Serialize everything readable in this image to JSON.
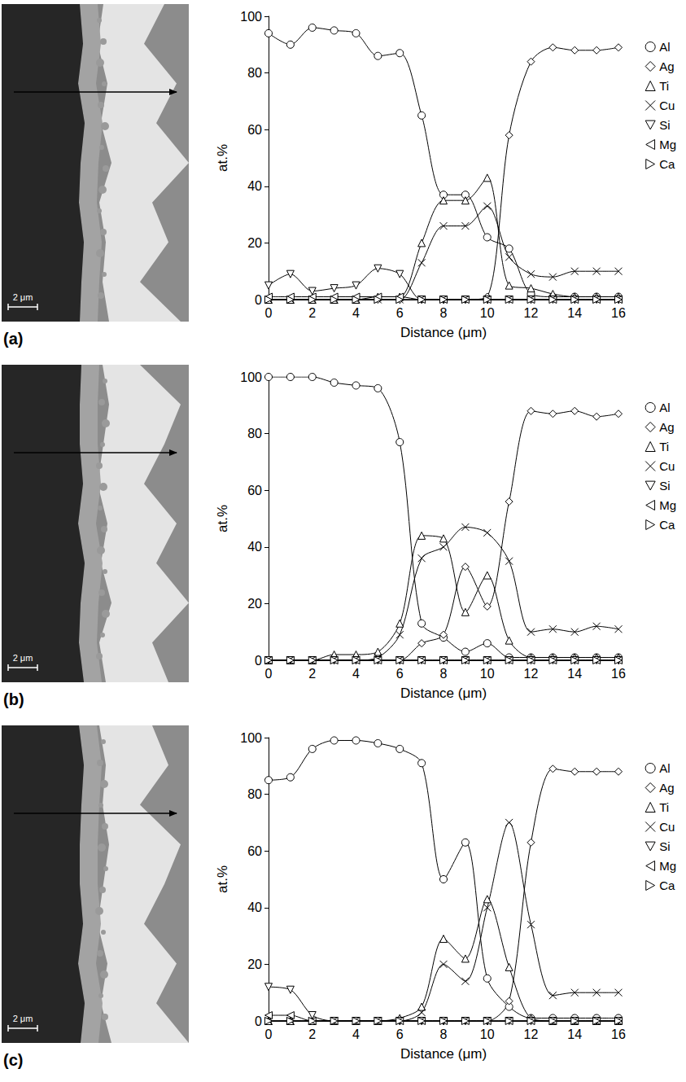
{
  "panels": [
    {
      "label": "(a)",
      "scale_bar": "2 μm"
    },
    {
      "label": "(b)",
      "scale_bar": "2 μm"
    },
    {
      "label": "(c)",
      "scale_bar": "2 μm"
    }
  ],
  "chart_data": [
    {
      "type": "line",
      "xlabel": "Distance (μm)",
      "ylabel": "at.%",
      "x": [
        0,
        1,
        2,
        3,
        4,
        5,
        6,
        7,
        8,
        9,
        10,
        11,
        12,
        13,
        14,
        15,
        16
      ],
      "xlim": [
        0,
        16
      ],
      "xticks": [
        0,
        2,
        4,
        6,
        8,
        10,
        12,
        14,
        16
      ],
      "ylim": [
        0,
        100
      ],
      "yticks": [
        0,
        20,
        40,
        60,
        80,
        100
      ],
      "grid": false,
      "legend": "right",
      "series": [
        {
          "name": "Al",
          "color": "#000000",
          "marker": "circle",
          "values": [
            94,
            90,
            96,
            95,
            94,
            86,
            87,
            65,
            37,
            37,
            22,
            18,
            2,
            1,
            1,
            1,
            1
          ]
        },
        {
          "name": "Ag",
          "color": "#000000",
          "marker": "diamond",
          "values": [
            0,
            0,
            0,
            0,
            0,
            0,
            0,
            0,
            0,
            0,
            1,
            58,
            84,
            89,
            88,
            88,
            89
          ]
        },
        {
          "name": "Ti",
          "color": "#000000",
          "marker": "triangle",
          "values": [
            0,
            0,
            0,
            0,
            0,
            1,
            1,
            20,
            35,
            35,
            43,
            5,
            4,
            2,
            1,
            1,
            1
          ]
        },
        {
          "name": "Cu",
          "color": "#000000",
          "marker": "x",
          "values": [
            0,
            0,
            0,
            0,
            0,
            0,
            0,
            13,
            26,
            26,
            33,
            15,
            9,
            8,
            10,
            10,
            10
          ]
        },
        {
          "name": "Si",
          "color": "#000000",
          "marker": "triangle-down",
          "values": [
            5,
            9,
            3,
            4,
            5,
            11,
            9,
            0,
            0,
            0,
            0,
            0,
            0,
            0,
            0,
            0,
            0
          ]
        },
        {
          "name": "Mg",
          "color": "#000000",
          "marker": "triangle-left",
          "values": [
            1,
            1,
            1,
            1,
            1,
            1,
            1,
            0,
            0,
            0,
            0,
            0,
            0,
            0,
            0,
            0,
            0
          ]
        },
        {
          "name": "Ca",
          "color": "#000000",
          "marker": "triangle-right",
          "values": [
            0,
            0,
            0,
            0,
            0,
            0,
            0,
            0,
            0,
            0,
            0,
            0,
            0,
            0,
            0,
            0,
            0
          ]
        }
      ]
    },
    {
      "type": "line",
      "xlabel": "Distance (μm)",
      "ylabel": "at.%",
      "x": [
        0,
        1,
        2,
        3,
        4,
        5,
        6,
        7,
        8,
        9,
        10,
        11,
        12,
        13,
        14,
        15,
        16
      ],
      "xlim": [
        0,
        16
      ],
      "xticks": [
        0,
        2,
        4,
        6,
        8,
        10,
        12,
        14,
        16
      ],
      "ylim": [
        0,
        100
      ],
      "yticks": [
        0,
        20,
        40,
        60,
        80,
        100
      ],
      "grid": false,
      "legend": "right",
      "series": [
        {
          "name": "Al",
          "color": "#000000",
          "marker": "circle",
          "values": [
            100,
            100,
            100,
            98,
            97,
            96,
            77,
            13,
            8,
            3,
            6,
            1,
            1,
            1,
            1,
            1,
            1
          ]
        },
        {
          "name": "Ag",
          "color": "#000000",
          "marker": "diamond",
          "values": [
            0,
            0,
            0,
            0,
            0,
            0,
            0,
            6,
            9,
            33,
            19,
            56,
            88,
            87,
            88,
            86,
            87
          ]
        },
        {
          "name": "Ti",
          "color": "#000000",
          "marker": "triangle",
          "values": [
            0,
            0,
            0,
            2,
            2,
            3,
            13,
            44,
            43,
            17,
            30,
            7,
            1,
            1,
            1,
            1,
            1
          ]
        },
        {
          "name": "Cu",
          "color": "#000000",
          "marker": "x",
          "values": [
            0,
            0,
            0,
            0,
            0,
            1,
            9,
            36,
            40,
            47,
            45,
            35,
            10,
            11,
            10,
            12,
            11
          ]
        },
        {
          "name": "Si",
          "color": "#000000",
          "marker": "triangle-down",
          "values": [
            0,
            0,
            0,
            0,
            0,
            0,
            0,
            0,
            0,
            0,
            0,
            0,
            0,
            0,
            0,
            0,
            0
          ]
        },
        {
          "name": "Mg",
          "color": "#000000",
          "marker": "triangle-left",
          "values": [
            0,
            0,
            0,
            0,
            0,
            0,
            0,
            0,
            0,
            0,
            0,
            0,
            0,
            0,
            0,
            0,
            0
          ]
        },
        {
          "name": "Ca",
          "color": "#000000",
          "marker": "triangle-right",
          "values": [
            0,
            0,
            0,
            0,
            0,
            0,
            0,
            0,
            0,
            0,
            0,
            0,
            0,
            0,
            0,
            0,
            0
          ]
        }
      ]
    },
    {
      "type": "line",
      "xlabel": "Distance (μm)",
      "ylabel": "at.%",
      "x": [
        0,
        1,
        2,
        3,
        4,
        5,
        6,
        7,
        8,
        9,
        10,
        11,
        12,
        13,
        14,
        15,
        16
      ],
      "xlim": [
        0,
        16
      ],
      "xticks": [
        0,
        2,
        4,
        6,
        8,
        10,
        12,
        14,
        16
      ],
      "ylim": [
        0,
        100
      ],
      "yticks": [
        0,
        20,
        40,
        60,
        80,
        100
      ],
      "grid": false,
      "legend": "right",
      "series": [
        {
          "name": "Al",
          "color": "#000000",
          "marker": "circle",
          "values": [
            85,
            86,
            96,
            99,
            99,
            98,
            96,
            91,
            50,
            63,
            15,
            5,
            1,
            1,
            1,
            1,
            1
          ]
        },
        {
          "name": "Ag",
          "color": "#000000",
          "marker": "diamond",
          "values": [
            0,
            0,
            0,
            0,
            0,
            0,
            0,
            0,
            0,
            0,
            0,
            7,
            63,
            89,
            88,
            88,
            88
          ]
        },
        {
          "name": "Ti",
          "color": "#000000",
          "marker": "triangle",
          "values": [
            0,
            0,
            0,
            0,
            0,
            0,
            1,
            5,
            29,
            22,
            43,
            19,
            1,
            0,
            0,
            0,
            0
          ]
        },
        {
          "name": "Cu",
          "color": "#000000",
          "marker": "x",
          "values": [
            0,
            0,
            0,
            0,
            0,
            0,
            0,
            3,
            20,
            14,
            40,
            70,
            34,
            9,
            10,
            10,
            10
          ]
        },
        {
          "name": "Si",
          "color": "#000000",
          "marker": "triangle-down",
          "values": [
            12,
            11,
            2,
            0,
            0,
            0,
            0,
            0,
            0,
            0,
            0,
            0,
            0,
            0,
            0,
            0,
            0
          ]
        },
        {
          "name": "Mg",
          "color": "#000000",
          "marker": "triangle-left",
          "values": [
            2,
            2,
            0,
            0,
            0,
            0,
            0,
            0,
            0,
            0,
            0,
            0,
            0,
            0,
            0,
            0,
            0
          ]
        },
        {
          "name": "Ca",
          "color": "#000000",
          "marker": "triangle-right",
          "values": [
            0,
            0,
            0,
            0,
            0,
            0,
            0,
            0,
            0,
            0,
            0,
            0,
            0,
            0,
            0,
            0,
            0
          ]
        }
      ]
    }
  ]
}
